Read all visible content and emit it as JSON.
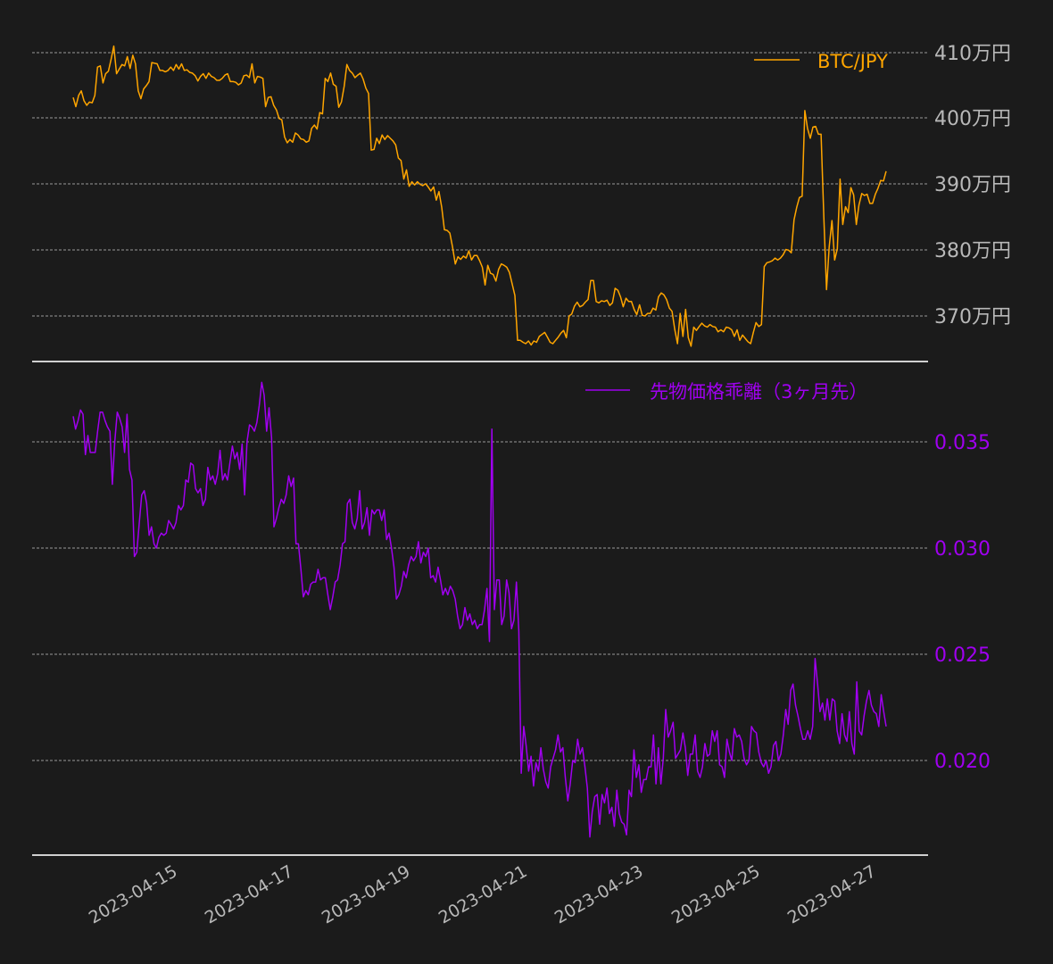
{
  "colors": {
    "background": "#1b1b1b",
    "btc": "#ffa500",
    "basis": "#a000f0",
    "grid": "#bbbbbb",
    "axis_line": "#d0d0d0",
    "tick_label": "#b8b8b8"
  },
  "top_panel": {
    "legend": "BTC/JPY",
    "y_ticks": [
      "410万円",
      "400万円",
      "390万円",
      "380万円",
      "370万円"
    ]
  },
  "bottom_panel": {
    "legend": "先物価格乖離（3ヶ月先）",
    "y_ticks": [
      "0.035",
      "0.030",
      "0.025",
      "0.020"
    ]
  },
  "x_ticks": [
    "2023-04-15",
    "2023-04-17",
    "2023-04-19",
    "2023-04-21",
    "2023-04-23",
    "2023-04-25",
    "2023-04-27"
  ],
  "chart_data": [
    {
      "type": "line",
      "title": "",
      "series": [
        {
          "name": "BTC/JPY",
          "color": "#ffa500",
          "x_range": [
            "2023-04-13T13:00",
            "2023-04-27T09:00"
          ],
          "values_man_yen": [
            403.2,
            401.8,
            403.5,
            404.2,
            402.7,
            402.0,
            402.5,
            402.4,
            403.5,
            407.8,
            408.0,
            405.4,
            406.8,
            407.2,
            409.0,
            411.0,
            406.8,
            407.5,
            408.2,
            408.0,
            409.4,
            407.6,
            409.6,
            408.3,
            404.2,
            403.0,
            404.5,
            405.0,
            405.6,
            408.5,
            408.4,
            408.3,
            407.3,
            407.3,
            407.1,
            407.3,
            407.8,
            407.3,
            408.2,
            407.5,
            408.3,
            407.3,
            407.4,
            407.0,
            406.9,
            406.5,
            405.7,
            406.4,
            406.8,
            406.1,
            406.9,
            406.4,
            406.2,
            405.8,
            405.8,
            406.1,
            406.6,
            406.8,
            405.6,
            405.6,
            405.5,
            405.1,
            405.4,
            406.5,
            406.6,
            406.2,
            408.3,
            405.4,
            406.4,
            406.3,
            406.1,
            401.8,
            403.2,
            403.3,
            402.0,
            401.3,
            400.0,
            399.8,
            397.2,
            396.3,
            396.8,
            396.4,
            397.8,
            397.5,
            396.9,
            396.8,
            396.4,
            396.6,
            398.5,
            399.0,
            398.4,
            400.9,
            400.7,
            406.1,
            405.6,
            406.9,
            405.2,
            404.9,
            401.7,
            402.5,
            404.9,
            408.2,
            407.3,
            406.9,
            406.2,
            406.6,
            406.9,
            406.0,
            404.6,
            403.8,
            395.2,
            395.3,
            397.0,
            396.2,
            397.5,
            396.8,
            397.4,
            397.0,
            396.6,
            396.0,
            394.0,
            393.6,
            390.8,
            392.2,
            389.7,
            390.4,
            389.9,
            390.4,
            390.0,
            389.8,
            390.1,
            389.6,
            389.0,
            389.6,
            387.6,
            388.9,
            386.5,
            383.1,
            383.0,
            382.6,
            380.5,
            377.9,
            379.0,
            378.6,
            379.1,
            378.8,
            379.9,
            378.5,
            379.2,
            379.2,
            378.4,
            377.4,
            374.7,
            377.7,
            376.5,
            376.3,
            375.3,
            377.1,
            377.9,
            377.7,
            377.4,
            376.6,
            374.9,
            373.1,
            366.3,
            366.3,
            366.0,
            365.8,
            366.2,
            365.6,
            366.2,
            366.0,
            366.9,
            367.2,
            367.5,
            366.8,
            366.0,
            365.8,
            366.3,
            366.8,
            367.4,
            367.8,
            366.7,
            370.0,
            370.3,
            371.5,
            372.1,
            371.4,
            371.6,
            372.1,
            372.5,
            375.4,
            375.4,
            372.2,
            372.0,
            372.3,
            372.2,
            372.4,
            371.6,
            372.0,
            374.2,
            373.9,
            372.9,
            371.4,
            372.7,
            372.2,
            372.2,
            371.0,
            370.2,
            371.7,
            370.1,
            370.0,
            370.4,
            370.4,
            371.2,
            370.9,
            372.9,
            373.5,
            373.2,
            372.5,
            371.2,
            370.7,
            368.0,
            365.8,
            370.4,
            366.9,
            371.0,
            366.7,
            365.4,
            368.3,
            367.8,
            368.4,
            368.9,
            368.5,
            368.3,
            368.7,
            368.4,
            368.3,
            367.6,
            367.9,
            367.6,
            368.3,
            368.2,
            367.9,
            366.9,
            367.9,
            366.3,
            367.1,
            366.6,
            366.1,
            365.8,
            367.5,
            369.0,
            368.4,
            368.7,
            377.5,
            378.1,
            378.2,
            378.4,
            378.8,
            378.5,
            378.8,
            379.3,
            380.1,
            380.0,
            379.6,
            384.6,
            386.5,
            388.0,
            388.2,
            401.2,
            398.5,
            397.0,
            398.7,
            398.8,
            397.6,
            397.6,
            385.0,
            374.0,
            380.5,
            384.5,
            378.5,
            380.2,
            390.8,
            383.9,
            386.6,
            385.7,
            389.5,
            388.4,
            383.9,
            386.9,
            388.6,
            388.3,
            388.5,
            387.1,
            387.1,
            388.5,
            389.4,
            390.6,
            390.5,
            392.0
          ]
        }
      ],
      "xlabel": "",
      "ylabel": "",
      "y_ticks": [
        370,
        380,
        390,
        400,
        410
      ],
      "ylim": [
        363.5,
        413.0
      ],
      "grid": true,
      "legend_position": "upper right"
    },
    {
      "type": "line",
      "title": "",
      "series": [
        {
          "name": "先物価格乖離（3ヶ月先）",
          "color": "#a000f0",
          "x_range": [
            "2023-04-13T13:00",
            "2023-04-27T09:00"
          ],
          "values": [
            0.0362,
            0.0356,
            0.036,
            0.0365,
            0.0363,
            0.0344,
            0.0353,
            0.0345,
            0.0345,
            0.0345,
            0.0355,
            0.0364,
            0.0364,
            0.036,
            0.0357,
            0.0355,
            0.033,
            0.035,
            0.0364,
            0.0361,
            0.0357,
            0.0345,
            0.0363,
            0.0337,
            0.0332,
            0.0296,
            0.0298,
            0.0312,
            0.0325,
            0.0327,
            0.0321,
            0.0306,
            0.031,
            0.0302,
            0.03,
            0.0305,
            0.0307,
            0.0306,
            0.0307,
            0.0313,
            0.0311,
            0.0309,
            0.0312,
            0.032,
            0.0318,
            0.032,
            0.0332,
            0.0331,
            0.034,
            0.0339,
            0.0328,
            0.0326,
            0.0328,
            0.032,
            0.0323,
            0.0338,
            0.0332,
            0.0334,
            0.033,
            0.0335,
            0.0346,
            0.0332,
            0.0335,
            0.0332,
            0.034,
            0.0348,
            0.0342,
            0.0345,
            0.0337,
            0.0349,
            0.0325,
            0.035,
            0.0358,
            0.0357,
            0.0355,
            0.0359,
            0.0367,
            0.0378,
            0.0372,
            0.0355,
            0.0366,
            0.0352,
            0.031,
            0.0314,
            0.0319,
            0.0323,
            0.0321,
            0.0325,
            0.0334,
            0.0329,
            0.0333,
            0.0302,
            0.0302,
            0.029,
            0.0277,
            0.028,
            0.0278,
            0.0283,
            0.0284,
            0.0284,
            0.029,
            0.0285,
            0.0286,
            0.0286,
            0.0278,
            0.0271,
            0.0277,
            0.0284,
            0.0285,
            0.0292,
            0.0302,
            0.0303,
            0.0321,
            0.0323,
            0.0312,
            0.0309,
            0.0314,
            0.0327,
            0.0309,
            0.0312,
            0.0319,
            0.0306,
            0.0318,
            0.0316,
            0.0318,
            0.0318,
            0.0313,
            0.0318,
            0.0304,
            0.0307,
            0.03,
            0.0291,
            0.0276,
            0.0278,
            0.0282,
            0.0289,
            0.0286,
            0.0292,
            0.0296,
            0.0294,
            0.0296,
            0.0303,
            0.0293,
            0.0298,
            0.0296,
            0.03,
            0.0286,
            0.0287,
            0.0284,
            0.0291,
            0.0285,
            0.0278,
            0.0281,
            0.0278,
            0.0282,
            0.028,
            0.0276,
            0.0268,
            0.0262,
            0.0264,
            0.0272,
            0.0266,
            0.0269,
            0.0264,
            0.0266,
            0.0262,
            0.0264,
            0.0264,
            0.0271,
            0.0281,
            0.0256,
            0.0356,
            0.0271,
            0.0285,
            0.0285,
            0.0264,
            0.0268,
            0.0285,
            0.0279,
            0.0262,
            0.0266,
            0.0284,
            0.0261,
            0.0194,
            0.0216,
            0.0207,
            0.0195,
            0.0202,
            0.0188,
            0.0199,
            0.0195,
            0.0206,
            0.0196,
            0.019,
            0.0187,
            0.0197,
            0.0201,
            0.0205,
            0.0212,
            0.0204,
            0.0206,
            0.0192,
            0.0181,
            0.0189,
            0.02,
            0.0199,
            0.021,
            0.0203,
            0.0206,
            0.0197,
            0.0187,
            0.0164,
            0.0176,
            0.0183,
            0.0184,
            0.017,
            0.0184,
            0.018,
            0.0187,
            0.0175,
            0.0178,
            0.0169,
            0.0186,
            0.0175,
            0.0171,
            0.017,
            0.0165,
            0.0186,
            0.0183,
            0.0205,
            0.0192,
            0.0198,
            0.0185,
            0.0191,
            0.0191,
            0.0197,
            0.0197,
            0.0212,
            0.0189,
            0.0206,
            0.0189,
            0.0201,
            0.0224,
            0.0211,
            0.0214,
            0.0218,
            0.0201,
            0.0203,
            0.0205,
            0.0213,
            0.0206,
            0.0193,
            0.0203,
            0.0203,
            0.0212,
            0.0195,
            0.0192,
            0.0197,
            0.0208,
            0.0202,
            0.0203,
            0.0214,
            0.0209,
            0.0214,
            0.0198,
            0.0197,
            0.0192,
            0.021,
            0.0204,
            0.02,
            0.0215,
            0.0211,
            0.0212,
            0.0209,
            0.0201,
            0.0198,
            0.02,
            0.0216,
            0.0214,
            0.0213,
            0.0204,
            0.0199,
            0.0197,
            0.02,
            0.0194,
            0.0197,
            0.0207,
            0.0209,
            0.02,
            0.0203,
            0.0212,
            0.0224,
            0.0217,
            0.0233,
            0.0236,
            0.0226,
            0.0221,
            0.0215,
            0.021,
            0.021,
            0.0214,
            0.021,
            0.0216,
            0.0248,
            0.0236,
            0.0223,
            0.0227,
            0.0219,
            0.0229,
            0.0219,
            0.0229,
            0.0228,
            0.0214,
            0.0208,
            0.0222,
            0.0212,
            0.0209,
            0.0223,
            0.0208,
            0.0203,
            0.0237,
            0.0214,
            0.0212,
            0.0221,
            0.0228,
            0.0233,
            0.0226,
            0.0223,
            0.0222,
            0.0216,
            0.0231,
            0.0223,
            0.0216
          ],
          "y_ticks": [
            0.02,
            0.025,
            0.03,
            0.035
          ]
        }
      ],
      "xlabel": "",
      "ylabel": "",
      "ylim": [
        0.0155,
        0.0393
      ],
      "grid": true,
      "legend_position": "upper right"
    }
  ]
}
